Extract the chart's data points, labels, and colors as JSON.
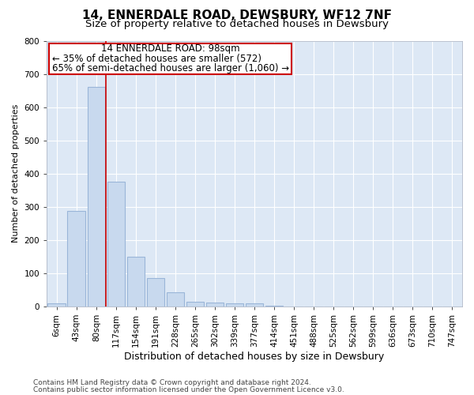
{
  "title": "14, ENNERDALE ROAD, DEWSBURY, WF12 7NF",
  "subtitle": "Size of property relative to detached houses in Dewsbury",
  "xlabel": "Distribution of detached houses by size in Dewsbury",
  "ylabel": "Number of detached properties",
  "bar_color": "#c8d9ee",
  "bar_edge_color": "#9ab5d8",
  "plot_bg_color": "#dde8f5",
  "categories": [
    "6sqm",
    "43sqm",
    "80sqm",
    "117sqm",
    "154sqm",
    "191sqm",
    "228sqm",
    "265sqm",
    "302sqm",
    "339sqm",
    "377sqm",
    "414sqm",
    "451sqm",
    "488sqm",
    "525sqm",
    "562sqm",
    "599sqm",
    "636sqm",
    "673sqm",
    "710sqm",
    "747sqm"
  ],
  "values": [
    8,
    287,
    662,
    375,
    150,
    85,
    42,
    13,
    12,
    10,
    9,
    3,
    0,
    0,
    0,
    0,
    0,
    0,
    0,
    0,
    0
  ],
  "ylim": [
    0,
    800
  ],
  "yticks": [
    0,
    100,
    200,
    300,
    400,
    500,
    600,
    700,
    800
  ],
  "property_label": "14 ENNERDALE ROAD: 98sqm",
  "annotation_line1": "← 35% of detached houses are smaller (572)",
  "annotation_line2": "65% of semi-detached houses are larger (1,060) →",
  "vline_x_index": 2.5,
  "footer_line1": "Contains HM Land Registry data © Crown copyright and database right 2024.",
  "footer_line2": "Contains public sector information licensed under the Open Government Licence v3.0.",
  "title_fontsize": 11,
  "subtitle_fontsize": 9.5,
  "xlabel_fontsize": 9,
  "ylabel_fontsize": 8,
  "tick_fontsize": 7.5,
  "annotation_fontsize": 8.5,
  "footer_fontsize": 6.5
}
